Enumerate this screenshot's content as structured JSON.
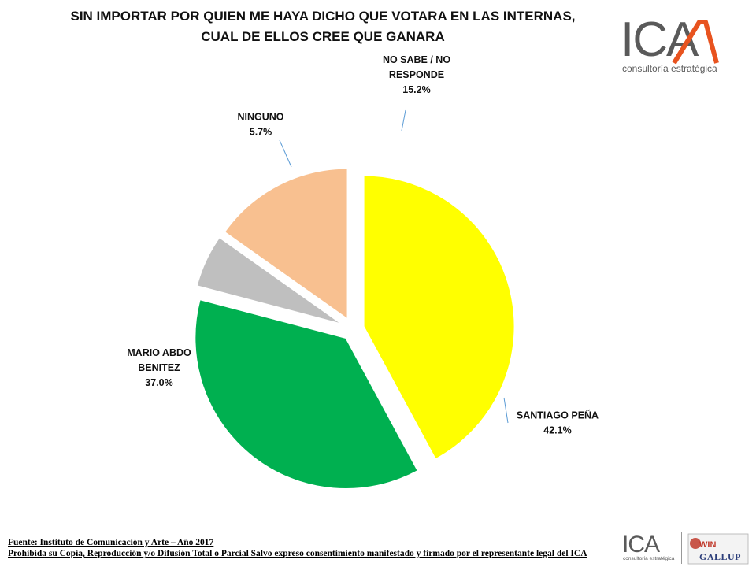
{
  "header": {
    "title_line1": "SIN IMPORTAR POR QUIEN ME HAYA DICHO QUE VOTARA EN LAS INTERNAS,",
    "title_line2": "CUAL DE ELLOS CREE QUE GANARA"
  },
  "logo": {
    "text": "ICA",
    "subtitle": "consultoría estratégica",
    "accent_color": "#e8531f"
  },
  "footer": {
    "source": "Fuente: Instituto de Comunicación y Arte – Año 2017",
    "disclaimer": "Prohibida su Copia, Reproducción y/o Difusión Total o Parcial Salvo expreso consentimiento manifestado y firmado por  el representante legal del ICA",
    "small_logo_text": "ICA",
    "small_logo_subtitle": "consultoría estratégica",
    "partner_logo_text_top": "WIN",
    "partner_logo_text_bottom": "GALLUP"
  },
  "chart_data": {
    "type": "pie",
    "title": "SIN IMPORTAR POR QUIEN ME HAYA DICHO QUE VOTARA EN LAS INTERNAS, CUAL DE ELLOS CREE QUE GANARA",
    "slices": [
      {
        "label_lines": [
          "SANTIAGO PEÑA"
        ],
        "value": 42.1,
        "value_label": "42.1%",
        "color": "#ffff00"
      },
      {
        "label_lines": [
          "MARIO ABDO",
          "BENITEZ"
        ],
        "value": 37.0,
        "value_label": "37.0%",
        "color": "#00b050"
      },
      {
        "label_lines": [
          "NINGUNO"
        ],
        "value": 5.7,
        "value_label": "5.7%",
        "color": "#bfbfbf"
      },
      {
        "label_lines": [
          "NO SABE / NO",
          "RESPONDE"
        ],
        "value": 15.2,
        "value_label": "15.2%",
        "color": "#f8c090"
      }
    ],
    "start_angle_deg": 90,
    "exploded": true
  }
}
